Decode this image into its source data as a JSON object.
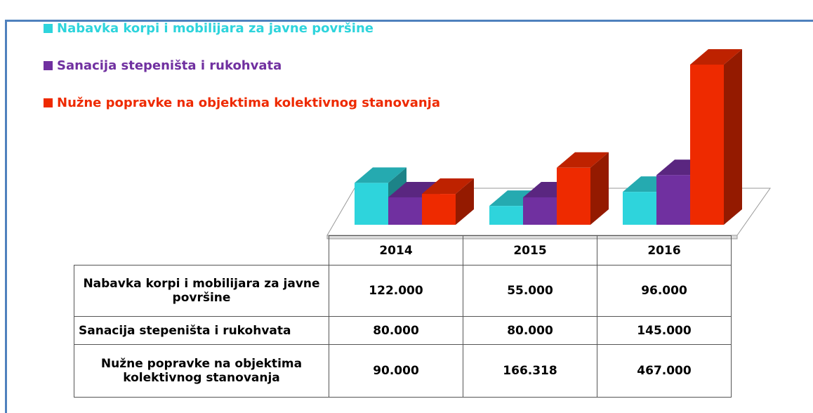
{
  "chart_data": {
    "type": "bar3d",
    "categories": [
      "2014",
      "2015",
      "2016"
    ],
    "series": [
      {
        "name": "Nabavka korpi i mobilijara za javne površine",
        "color": "#2ed4dc",
        "values": [
          122000,
          55000,
          96000
        ],
        "value_labels": [
          "122.000",
          "55.000",
          "96.000"
        ]
      },
      {
        "name": "Sanacija stepeništa i rukohvata",
        "color": "#7030a0",
        "values": [
          80000,
          80000,
          145000
        ],
        "value_labels": [
          "80.000",
          "80.000",
          "145.000"
        ]
      },
      {
        "name": "Nužne popravke na objektima kolektivnog stanovanja",
        "color": "#ee2a00",
        "values": [
          90000,
          166318,
          467000
        ],
        "value_labels": [
          "90.000",
          "166.318",
          "467.000"
        ]
      }
    ]
  }
}
